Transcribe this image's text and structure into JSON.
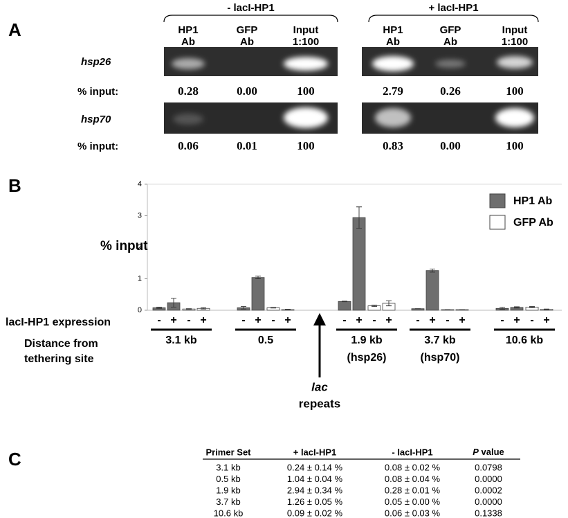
{
  "panel_a": {
    "label": "A",
    "groups": [
      {
        "title": "- lacI-HP1",
        "lanes": [
          [
            "HP1",
            "Ab"
          ],
          [
            "GFP",
            "Ab"
          ],
          [
            "Input",
            "1:100"
          ]
        ]
      },
      {
        "title": "+ lacI-HP1",
        "lanes": [
          [
            "HP1",
            "Ab"
          ],
          [
            "GFP",
            "Ab"
          ],
          [
            "Input",
            "1:100"
          ]
        ]
      }
    ],
    "rows": [
      {
        "gene": "hsp26",
        "label": "% input:",
        "values": [
          "0.28",
          "0.00",
          "100",
          "2.79",
          "0.26",
          "100"
        ]
      },
      {
        "gene": "hsp70",
        "label": "% input:",
        "values": [
          "0.06",
          "0.01",
          "100",
          "0.83",
          "0.00",
          "100"
        ]
      }
    ]
  },
  "chart_data": {
    "type": "bar",
    "label": "B",
    "ylabel": "% input",
    "ylim": [
      0,
      4
    ],
    "yticks": [
      0,
      1,
      2,
      3,
      4
    ],
    "expression_label": "lacI-HP1 expression",
    "distance_label": [
      "Distance from",
      "tethering site"
    ],
    "signs": [
      "-",
      "+"
    ],
    "categories": [
      "3.1 kb",
      "0.5",
      "1.9 kb",
      "3.7 kb",
      "10.6 kb"
    ],
    "sublabels": [
      null,
      null,
      "(hsp26)",
      "(hsp70)",
      null
    ],
    "annotation": [
      "lac",
      "repeats"
    ],
    "series": [
      {
        "name": "HP1 Ab",
        "color": "#6e6e6e",
        "values_minus": [
          0.08,
          0.08,
          0.28,
          0.05,
          0.06
        ],
        "errors_minus": [
          0.02,
          0.04,
          0.01,
          0.0,
          0.03
        ],
        "values_plus": [
          0.24,
          1.04,
          2.94,
          1.26,
          0.09
        ],
        "errors_plus": [
          0.14,
          0.04,
          0.34,
          0.05,
          0.02
        ]
      },
      {
        "name": "GFP Ab",
        "color": "#ffffff",
        "values_minus": [
          0.04,
          0.08,
          0.14,
          0.02,
          0.1
        ],
        "errors_minus": [
          0.01,
          0.01,
          0.02,
          0.0,
          0.02
        ],
        "values_plus": [
          0.06,
          0.02,
          0.22,
          0.02,
          0.03
        ],
        "errors_plus": [
          0.02,
          0.01,
          0.08,
          0.0,
          0.01
        ]
      }
    ]
  },
  "panel_c": {
    "label": "C",
    "header": [
      "Primer Set",
      "+ lacI-HP1",
      "- lacI-HP1"
    ],
    "p_header": [
      "P",
      "value"
    ],
    "rows": [
      [
        "3.1 kb",
        "0.24 ± 0.14 %",
        "0.08 ± 0.02 %",
        "0.0798"
      ],
      [
        "0.5 kb",
        "1.04 ± 0.04 %",
        "0.08 ± 0.04 %",
        "0.0000"
      ],
      [
        "1.9 kb",
        "2.94 ± 0.34 %",
        "0.28 ± 0.01 %",
        "0.0002"
      ],
      [
        "3.7 kb",
        "1.26 ± 0.05 %",
        "0.05 ± 0.00 %",
        "0.0000"
      ],
      [
        "10.6 kb",
        "0.09 ± 0.02 %",
        "0.06 ± 0.03 %",
        "0.1338"
      ]
    ]
  }
}
